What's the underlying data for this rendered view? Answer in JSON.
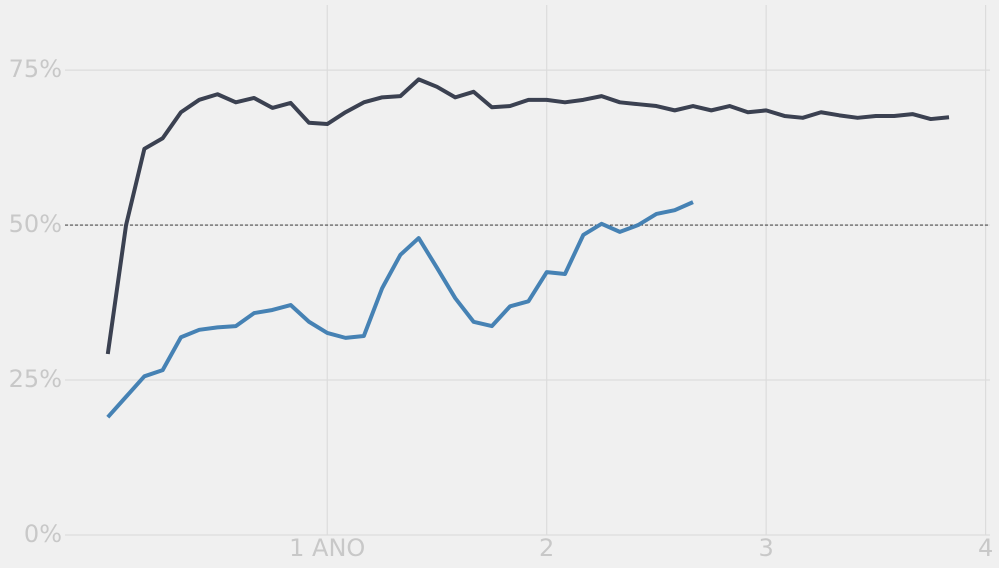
{
  "chart_data": {
    "type": "line",
    "x": [
      0,
      0.0833,
      0.1667,
      0.25,
      0.3333,
      0.4167,
      0.5,
      0.5833,
      0.6667,
      0.75,
      0.8333,
      0.9167,
      1,
      1.0833,
      1.1667,
      1.25,
      1.3333,
      1.4167,
      1.5,
      1.5833,
      1.6667,
      1.75,
      1.8333,
      1.9167,
      2,
      2.0833,
      2.1667,
      2.25,
      2.3333,
      2.4167,
      2.5,
      2.5833,
      2.6667,
      2.75,
      2.8333,
      2.9167,
      3,
      3.0833,
      3.1667,
      3.25,
      3.3333,
      3.4167,
      3.5,
      3.5833,
      3.6667,
      3.75,
      3.8333
    ],
    "series": [
      {
        "color": "#3b4151",
        "values": [
          29.2,
          50,
          62.3,
          64,
          68.2,
          70.2,
          71.1,
          69.8,
          70.5,
          68.9,
          69.7,
          66.5,
          66.3,
          68.2,
          69.8,
          70.6,
          70.8,
          73.5,
          72.3,
          70.6,
          71.5,
          69.0,
          69.2,
          70.2,
          70.2,
          69.8,
          70.2,
          70.8,
          69.8,
          69.5,
          69.2,
          68.5,
          69.2,
          68.5,
          69.2,
          68.2,
          68.5,
          67.6,
          67.3,
          68.2,
          67.7,
          67.3,
          67.6,
          67.6,
          67.9,
          67.1,
          67.4
        ]
      },
      {
        "color": "#4682b4",
        "values": [
          19.0,
          22.3,
          25.6,
          26.6,
          31.9,
          33.1,
          33.5,
          33.7,
          35.8,
          36.3,
          37.1,
          34.4,
          32.6,
          31.8,
          32.1,
          39.8,
          45.2,
          47.9,
          43.1,
          38.2,
          34.4,
          33.7,
          36.9,
          37.7,
          42.4,
          42.1,
          48.4,
          50.2,
          48.9,
          50.0,
          51.8,
          52.4,
          53.7,
          null,
          null,
          null,
          null,
          null,
          null,
          null,
          null,
          null,
          null,
          null,
          null,
          null,
          null
        ]
      }
    ],
    "xlim": [
      -0.195,
      4.02
    ],
    "xticks": [
      {
        "value": 1,
        "label": "1 ANO"
      },
      2,
      3,
      4
    ],
    "ylim": [
      0,
      85.5
    ],
    "yticks": [
      {
        "value": 0,
        "label": "0%"
      },
      {
        "value": 25,
        "label": "25%"
      },
      {
        "value": 50,
        "label": "50%"
      },
      {
        "value": 75,
        "label": "75%"
      }
    ],
    "hline": 50,
    "grid": true
  }
}
